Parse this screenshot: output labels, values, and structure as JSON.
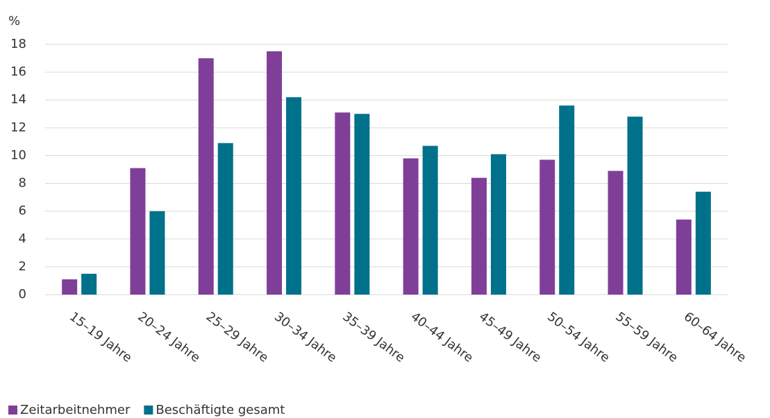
{
  "chart_data": {
    "type": "bar",
    "y_label": "%",
    "categories": [
      "15–19 Jahre",
      "20–24 Jahre",
      "25–29 Jahre",
      "30–34 Jahre",
      "35–39 Jahre",
      "40–44 Jahre",
      "45–49 Jahre",
      "50–54 Jahre",
      "55–59 Jahre",
      "60–64 Jahre"
    ],
    "series": [
      {
        "name": "Zeitarbeitnehmer",
        "color": "#7f3f98",
        "values": [
          1.1,
          9.1,
          17.0,
          17.5,
          13.1,
          9.8,
          8.4,
          9.7,
          8.9,
          5.4
        ]
      },
      {
        "name": "Beschäftigte gesamt",
        "color": "#00718a",
        "values": [
          1.5,
          6.0,
          10.9,
          14.2,
          13.0,
          10.7,
          10.1,
          13.6,
          12.8,
          7.4
        ]
      }
    ],
    "ylim": [
      0,
      18
    ],
    "yticks": [
      0,
      2,
      4,
      6,
      8,
      10,
      12,
      14,
      16,
      18
    ],
    "grid": true,
    "legend": "bottom-left"
  }
}
